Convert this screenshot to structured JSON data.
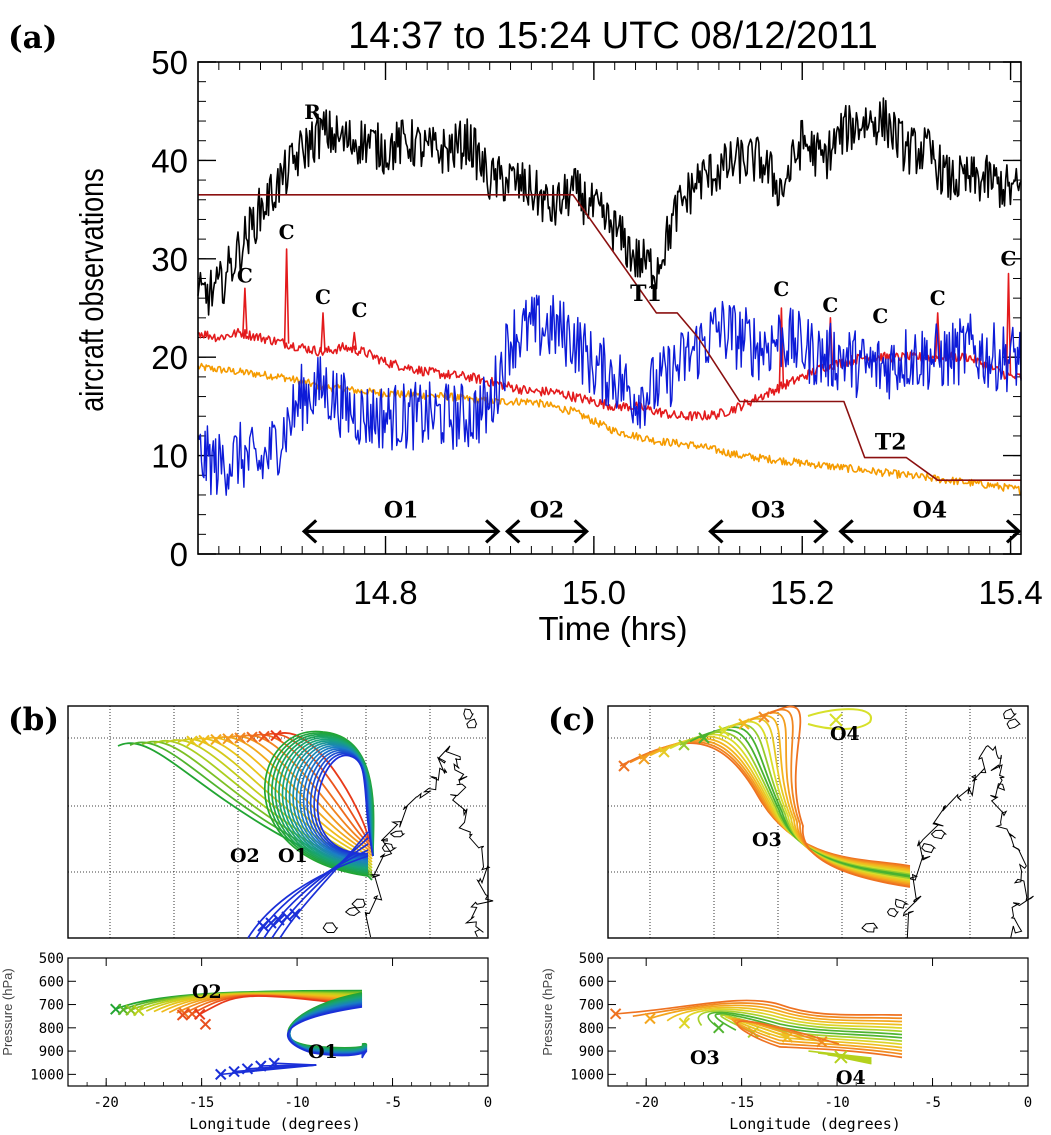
{
  "chart_data": [
    {
      "panel": "(a)",
      "type": "line",
      "title": "14:37 to 15:24 UTC 08/12/2011",
      "xlabel": "Time (hrs)",
      "ylabel": "aircraft observations",
      "xlim": [
        14.62,
        15.41
      ],
      "ylim": [
        0,
        50
      ],
      "xticks": [
        "14.8",
        "15.0",
        "15.2",
        "15.4"
      ],
      "yticks": [
        "0",
        "10",
        "20",
        "30",
        "40",
        "50"
      ],
      "series": [
        {
          "color": "#000000",
          "x": [
            14.62,
            14.64,
            14.66,
            14.68,
            14.7,
            14.72,
            14.74,
            14.76,
            14.78,
            14.8,
            14.82,
            14.84,
            14.86,
            14.88,
            14.9,
            14.92,
            14.94,
            14.96,
            14.98,
            15.0,
            15.02,
            15.04,
            15.06,
            15.08,
            15.1,
            15.12,
            15.14,
            15.16,
            15.18,
            15.2,
            15.22,
            15.24,
            15.26,
            15.28,
            15.3,
            15.32,
            15.34,
            15.36,
            15.38,
            15.4
          ],
          "y": [
            26,
            27,
            31,
            35,
            38,
            41,
            43,
            42,
            42,
            41,
            42,
            41,
            41,
            42,
            38,
            38,
            37,
            35,
            37,
            35,
            33,
            30,
            29,
            35,
            38,
            39,
            40,
            40,
            37,
            42,
            40,
            43,
            44,
            44,
            41,
            41,
            38,
            38,
            38,
            37
          ],
          "noise": 2.5
        },
        {
          "color": "#e31a1c",
          "x": [
            14.62,
            14.64,
            14.66,
            14.68,
            14.7,
            14.72,
            14.74,
            14.76,
            14.78,
            14.8,
            14.82,
            14.84,
            14.86,
            14.88,
            14.9,
            14.92,
            14.94,
            14.96,
            14.98,
            15.0,
            15.02,
            15.04,
            15.06,
            15.08,
            15.1,
            15.12,
            15.14,
            15.16,
            15.18,
            15.2,
            15.22,
            15.24,
            15.26,
            15.28,
            15.3,
            15.32,
            15.34,
            15.36,
            15.38,
            15.4
          ],
          "y": [
            22.5,
            22,
            22.5,
            22,
            21.5,
            21,
            20.5,
            21,
            20.5,
            19.5,
            19,
            18.5,
            18.2,
            18,
            17.5,
            17,
            16.5,
            16.5,
            16,
            15.5,
            15,
            15,
            14.5,
            14,
            14,
            14.2,
            15,
            16,
            17,
            18,
            19,
            19.5,
            20,
            20,
            20,
            20,
            20,
            20,
            19,
            18
          ],
          "noise": 0.5
        },
        {
          "color": "#f59b00",
          "x": [
            14.62,
            14.66,
            14.7,
            14.74,
            14.78,
            14.82,
            14.86,
            14.9,
            14.94,
            14.98,
            15.02,
            15.06,
            15.1,
            15.14,
            15.18,
            15.22,
            15.26,
            15.3,
            15.34,
            15.38,
            15.41
          ],
          "y": [
            19,
            18.5,
            18,
            17,
            16.5,
            16.2,
            16,
            15.5,
            15.5,
            14.5,
            12.5,
            11.5,
            11,
            10,
            9.5,
            9,
            8.5,
            8,
            7.5,
            7,
            6.5
          ],
          "noise": 0.4
        },
        {
          "color": "#0d1bd8",
          "x": [
            14.62,
            14.64,
            14.66,
            14.68,
            14.7,
            14.72,
            14.74,
            14.76,
            14.78,
            14.8,
            14.82,
            14.84,
            14.86,
            14.88,
            14.9,
            14.92,
            14.94,
            14.96,
            14.98,
            15.0,
            15.02,
            15.04,
            15.06,
            15.08,
            15.1,
            15.12,
            15.14,
            15.16,
            15.18,
            15.2,
            15.22,
            15.24,
            15.26,
            15.28,
            15.3,
            15.32,
            15.34,
            15.36,
            15.38,
            15.4
          ],
          "y": [
            10,
            9,
            10,
            9,
            12,
            16,
            17,
            15,
            14,
            14,
            14,
            14,
            14,
            14,
            15,
            22,
            23,
            23,
            22,
            19,
            18,
            16,
            17,
            19,
            21,
            23,
            22,
            21,
            22,
            21,
            20,
            20,
            19,
            19,
            20,
            20,
            20,
            21,
            20,
            20
          ],
          "noise": 3.5
        },
        {
          "color": "#8b1010",
          "x": [
            14.62,
            14.98,
            15.06,
            15.08,
            15.1,
            15.14,
            15.22,
            15.24,
            15.26,
            15.28,
            15.3,
            15.33,
            15.41
          ],
          "y": [
            36.5,
            36.5,
            24.5,
            24.5,
            22,
            15.5,
            15.5,
            15.5,
            9.8,
            9.8,
            9.8,
            7.5,
            7.5
          ],
          "noise": 0
        }
      ],
      "annotations": [
        {
          "text": "R",
          "x": 14.73,
          "y": 44.2
        },
        {
          "text": "C",
          "x": 14.665,
          "y": 27.6
        },
        {
          "text": "C",
          "x": 14.705,
          "y": 32.0
        },
        {
          "text": "C",
          "x": 14.74,
          "y": 25.4
        },
        {
          "text": "C",
          "x": 14.775,
          "y": 24.1
        },
        {
          "text": "T1",
          "x": 15.05,
          "y": 25.7
        },
        {
          "text": "C",
          "x": 15.18,
          "y": 26.2
        },
        {
          "text": "C",
          "x": 15.227,
          "y": 24.6
        },
        {
          "text": "C",
          "x": 15.275,
          "y": 23.5
        },
        {
          "text": "C",
          "x": 15.33,
          "y": 25.3
        },
        {
          "text": "C",
          "x": 15.398,
          "y": 29.3
        },
        {
          "text": "T2",
          "x": 15.285,
          "y": 10.6
        }
      ],
      "arrows": [
        {
          "label": "O1",
          "from": 14.72,
          "to": 14.91,
          "y": 2.3
        },
        {
          "label": "O2",
          "from": 14.915,
          "to": 14.995,
          "y": 2.3
        },
        {
          "label": "O3",
          "from": 15.11,
          "to": 15.225,
          "y": 2.3
        },
        {
          "label": "O4",
          "from": 15.235,
          "to": 15.41,
          "y": 2.3
        }
      ]
    },
    {
      "panel": "(b)",
      "type": "line",
      "ylabel": "Pressure (hPa)",
      "xlabel": "Longitude  (degrees)",
      "xlim": [
        -22,
        0
      ],
      "ylim": [
        500,
        1050
      ],
      "xticks": [
        "-20",
        "-15",
        "-10",
        "-5",
        "0"
      ],
      "yticks": [
        "500",
        "600",
        "700",
        "800",
        "900",
        "1000"
      ],
      "labels": [
        "O2",
        "O1"
      ]
    },
    {
      "panel": "(c)",
      "type": "line",
      "ylabel": "Pressure (hPa)",
      "xlabel": "Longitude  (degrees)",
      "xlim": [
        -22,
        0
      ],
      "ylim": [
        500,
        1050
      ],
      "xticks": [
        "-20",
        "-15",
        "-10",
        "-5",
        "0"
      ],
      "yticks": [
        "500",
        "600",
        "700",
        "800",
        "900",
        "1000"
      ],
      "labels": [
        "O4",
        "O3",
        "O3",
        "O4"
      ]
    }
  ],
  "colors": {
    "red": "#e31a1c",
    "orange": "#f59b00",
    "blue": "#0d1bd8",
    "black": "#000000",
    "darkred": "#8b1010"
  }
}
